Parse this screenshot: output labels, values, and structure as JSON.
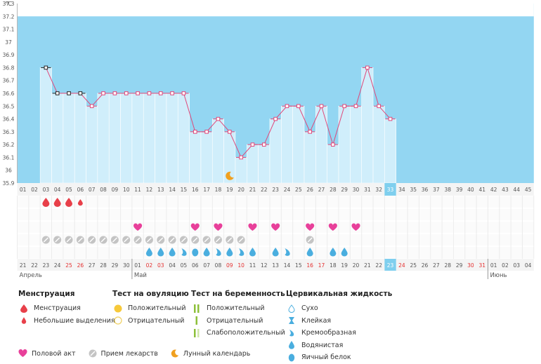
{
  "chart_data": {
    "type": "line",
    "unit_label": "°C",
    "y_ticks": [
      "37.3",
      "37.2",
      "37.1",
      "37",
      "36.9",
      "36.8",
      "36.7",
      "36.6",
      "36.5",
      "36.4",
      "36.3",
      "36.2",
      "36.1",
      "36",
      "35.9"
    ],
    "ylim": [
      35.9,
      37.3
    ],
    "cover_line": 37.2,
    "cycle_days": [
      "01",
      "02",
      "03",
      "04",
      "05",
      "06",
      "07",
      "08",
      "09",
      "10",
      "11",
      "12",
      "13",
      "14",
      "15",
      "16",
      "17",
      "18",
      "19",
      "20",
      "21",
      "22",
      "23",
      "24",
      "25",
      "26",
      "27",
      "28",
      "29",
      "30",
      "31",
      "32",
      "33",
      "34",
      "35",
      "36",
      "37",
      "38",
      "39",
      "40",
      "41",
      "42",
      "43",
      "44",
      "45"
    ],
    "current_day": "33",
    "temperature_series": [
      {
        "day": 3,
        "value": 36.8,
        "excluded": true
      },
      {
        "day": 4,
        "value": 36.6,
        "excluded": true
      },
      {
        "day": 5,
        "value": 36.6,
        "excluded": true
      },
      {
        "day": 6,
        "value": 36.6,
        "excluded": true
      },
      {
        "day": 7,
        "value": 36.5
      },
      {
        "day": 8,
        "value": 36.6
      },
      {
        "day": 9,
        "value": 36.6
      },
      {
        "day": 10,
        "value": 36.6
      },
      {
        "day": 11,
        "value": 36.6
      },
      {
        "day": 12,
        "value": 36.6
      },
      {
        "day": 13,
        "value": 36.6
      },
      {
        "day": 14,
        "value": 36.6
      },
      {
        "day": 15,
        "value": 36.6
      },
      {
        "day": 16,
        "value": 36.3
      },
      {
        "day": 17,
        "value": 36.3
      },
      {
        "day": 18,
        "value": 36.4
      },
      {
        "day": 19,
        "value": 36.3
      },
      {
        "day": 20,
        "value": 36.1
      },
      {
        "day": 21,
        "value": 36.2
      },
      {
        "day": 22,
        "value": 36.2
      },
      {
        "day": 23,
        "value": 36.4
      },
      {
        "day": 24,
        "value": 36.5
      },
      {
        "day": 25,
        "value": 36.5
      },
      {
        "day": 26,
        "value": 36.3
      },
      {
        "day": 27,
        "value": 36.5
      },
      {
        "day": 28,
        "value": 36.2
      },
      {
        "day": 29,
        "value": 36.5
      },
      {
        "day": 30,
        "value": 36.5
      },
      {
        "day": 31,
        "value": 36.8
      },
      {
        "day": 32,
        "value": 36.5
      },
      {
        "day": 33,
        "value": 36.4
      }
    ],
    "moon_day": 19,
    "menstruation": [
      {
        "day": 3,
        "type": "heavy"
      },
      {
        "day": 4,
        "type": "heavy"
      },
      {
        "day": 5,
        "type": "heavy"
      },
      {
        "day": 6,
        "type": "light"
      }
    ],
    "intercourse_days": [
      11,
      16,
      18,
      21,
      23,
      26,
      28,
      30
    ],
    "medication_days": [
      3,
      4,
      5,
      6,
      7,
      8,
      9,
      10,
      11,
      12,
      13,
      14,
      15,
      16,
      17,
      18,
      19,
      20,
      26
    ],
    "cervical_fluid": [
      {
        "day": 12,
        "type": "watery"
      },
      {
        "day": 13,
        "type": "watery"
      },
      {
        "day": 14,
        "type": "watery"
      },
      {
        "day": 15,
        "type": "creamy"
      },
      {
        "day": 16,
        "type": "eggwhite"
      },
      {
        "day": 17,
        "type": "watery"
      },
      {
        "day": 18,
        "type": "creamy"
      },
      {
        "day": 19,
        "type": "watery"
      },
      {
        "day": 20,
        "type": "creamy"
      },
      {
        "day": 21,
        "type": "watery"
      },
      {
        "day": 23,
        "type": "watery"
      },
      {
        "day": 24,
        "type": "creamy"
      },
      {
        "day": 26,
        "type": "watery"
      },
      {
        "day": 28,
        "type": "watery"
      },
      {
        "day": 29,
        "type": "watery"
      }
    ],
    "calendar_dates": [
      {
        "text": "21",
        "red": false
      },
      {
        "text": "22",
        "red": false
      },
      {
        "text": "23",
        "red": false
      },
      {
        "text": "24",
        "red": false
      },
      {
        "text": "25",
        "red": true
      },
      {
        "text": "26",
        "red": true
      },
      {
        "text": "27",
        "red": false
      },
      {
        "text": "28",
        "red": false
      },
      {
        "text": "29",
        "red": false
      },
      {
        "text": "30",
        "red": false
      },
      {
        "text": "01",
        "red": false
      },
      {
        "text": "02",
        "red": true
      },
      {
        "text": "03",
        "red": true
      },
      {
        "text": "04",
        "red": false
      },
      {
        "text": "05",
        "red": false
      },
      {
        "text": "06",
        "red": false
      },
      {
        "text": "07",
        "red": false
      },
      {
        "text": "08",
        "red": false
      },
      {
        "text": "09",
        "red": true
      },
      {
        "text": "10",
        "red": true
      },
      {
        "text": "11",
        "red": false
      },
      {
        "text": "12",
        "red": false
      },
      {
        "text": "13",
        "red": false
      },
      {
        "text": "14",
        "red": false
      },
      {
        "text": "15",
        "red": false
      },
      {
        "text": "16",
        "red": true
      },
      {
        "text": "17",
        "red": true
      },
      {
        "text": "18",
        "red": false
      },
      {
        "text": "19",
        "red": false
      },
      {
        "text": "20",
        "red": false
      },
      {
        "text": "21",
        "red": false
      },
      {
        "text": "22",
        "red": false
      },
      {
        "text": "23",
        "red": false
      },
      {
        "text": "24",
        "red": true
      },
      {
        "text": "25",
        "red": false
      },
      {
        "text": "26",
        "red": false
      },
      {
        "text": "27",
        "red": false
      },
      {
        "text": "28",
        "red": false
      },
      {
        "text": "29",
        "red": false
      },
      {
        "text": "30",
        "red": true
      },
      {
        "text": "31",
        "red": true
      },
      {
        "text": "01",
        "red": false
      },
      {
        "text": "02",
        "red": false
      },
      {
        "text": "03",
        "red": false
      },
      {
        "text": "04",
        "red": false
      }
    ],
    "months": [
      {
        "label": "Апрель",
        "day": 1
      },
      {
        "label": "Май",
        "day": 11
      },
      {
        "label": "Июнь",
        "day": 42
      }
    ],
    "colors": {
      "background": "#93d6f2",
      "bar": "#d0eefb",
      "bar_edge": "#ffffff",
      "line": "#e0487a",
      "marker_excluded": "#222222",
      "menstruation": "#e8404a",
      "heart": "#e8409a",
      "pill": "#c4c4c4",
      "drop": "#4aaedf",
      "highlight": "#7fcfee",
      "red_date": "#e53030",
      "moon": "#f0a020"
    }
  },
  "legend": {
    "menstruation": {
      "title": "Менструация",
      "items": [
        {
          "label": "Менструация",
          "icon": "drop-heavy-icon"
        },
        {
          "label": "Небольшие выделения",
          "icon": "drop-light-icon"
        }
      ]
    },
    "ovulation": {
      "title": "Тест на овуляцию",
      "items": [
        {
          "label": "Положительный",
          "icon": "circle-filled-icon"
        },
        {
          "label": "Отрицательный",
          "icon": "circle-empty-icon"
        }
      ]
    },
    "pregnancy": {
      "title": "Тест на беременность",
      "items": [
        {
          "label": "Положительный",
          "icon": "two-lines-icon"
        },
        {
          "label": "Отрицательный",
          "icon": "one-line-icon"
        },
        {
          "label": "Слабоположительный",
          "icon": "faint-lines-icon"
        }
      ]
    },
    "cervical": {
      "title": "Цервикальная жидкость",
      "items": [
        {
          "label": "Сухо",
          "icon": "dry-icon"
        },
        {
          "label": "Клейкая",
          "icon": "sticky-icon"
        },
        {
          "label": "Кремообразная",
          "icon": "creamy-icon"
        },
        {
          "label": "Водянистая",
          "icon": "watery-icon"
        },
        {
          "label": "Яичный белок",
          "icon": "eggwhite-icon"
        }
      ]
    },
    "bottom": [
      {
        "label": "Половой акт",
        "icon": "heart-icon"
      },
      {
        "label": "Прием лекарств",
        "icon": "pill-icon"
      },
      {
        "label": "Лунный календарь",
        "icon": "moon-icon"
      }
    ]
  }
}
